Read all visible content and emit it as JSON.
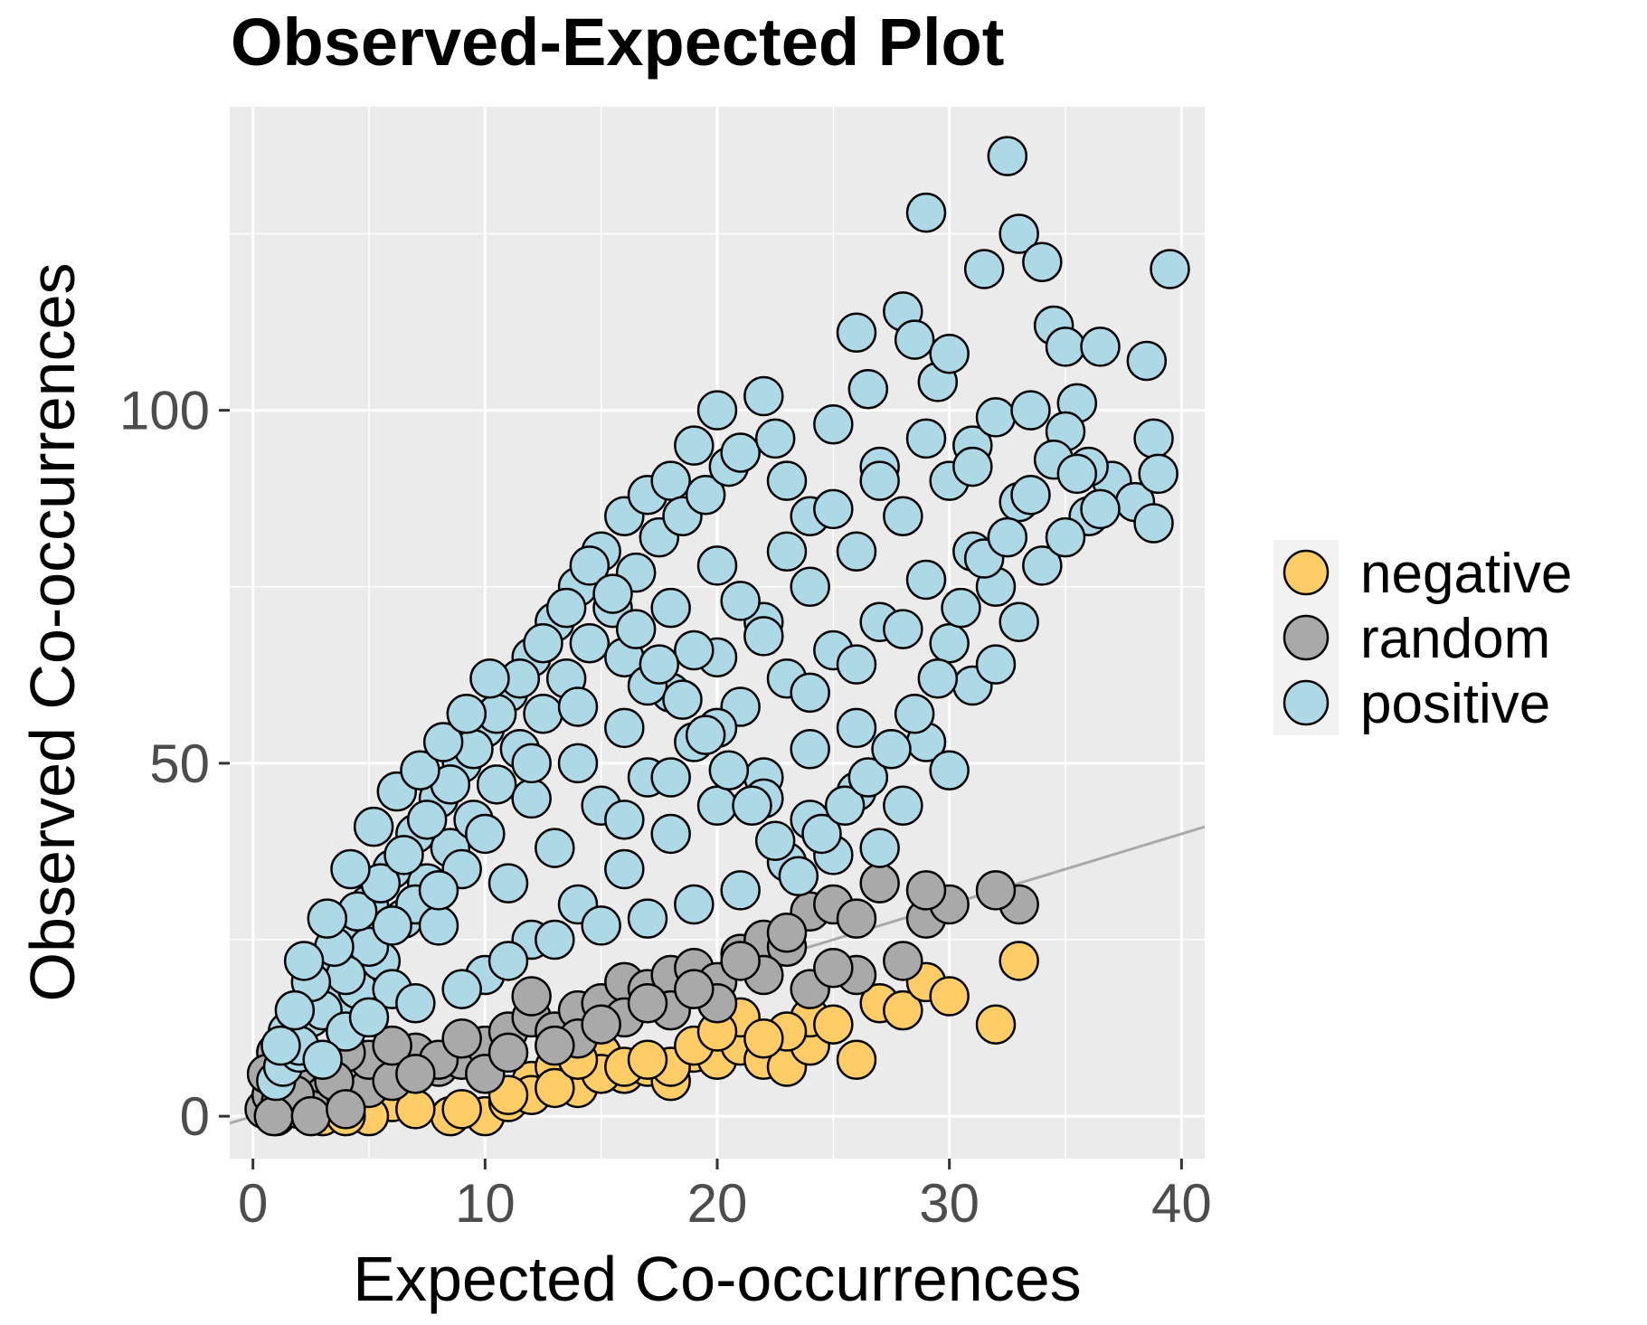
{
  "chart_data": {
    "type": "scatter",
    "title": "Observed-Expected Plot",
    "xlabel": "Expected Co-occurrences",
    "ylabel": "Observed Co-occurrences",
    "xlim": [
      -1,
      41
    ],
    "ylim": [
      -6,
      143
    ],
    "xticks": [
      0,
      10,
      20,
      30,
      40
    ],
    "xtick_labels": [
      "0",
      "10",
      "20",
      "30",
      "40"
    ],
    "yticks": [
      0,
      50,
      100
    ],
    "ytick_labels": [
      "0",
      "50",
      "100"
    ],
    "grid": true,
    "legend_position": "right",
    "reference_line": {
      "slope": 1,
      "intercept": 0,
      "color": "#aaaaaa"
    },
    "series": [
      {
        "name": "negative",
        "color": "#ffcc66",
        "points": [
          [
            6,
            2
          ],
          [
            8.5,
            0
          ],
          [
            10,
            0
          ],
          [
            11,
            2
          ],
          [
            12,
            5
          ],
          [
            13,
            7
          ],
          [
            14,
            4
          ],
          [
            15,
            9
          ],
          [
            16,
            6
          ],
          [
            17,
            7
          ],
          [
            18,
            5
          ],
          [
            19,
            9
          ],
          [
            20,
            8
          ],
          [
            21,
            10
          ],
          [
            22,
            8
          ],
          [
            23,
            7
          ],
          [
            24,
            10
          ],
          [
            24,
            14
          ],
          [
            25,
            13
          ],
          [
            26,
            8
          ],
          [
            27,
            16
          ],
          [
            28,
            15
          ],
          [
            29,
            19
          ],
          [
            30,
            17
          ],
          [
            32,
            13
          ],
          [
            33,
            22
          ],
          [
            5,
            0
          ],
          [
            7,
            1
          ],
          [
            9,
            1
          ],
          [
            12,
            3
          ],
          [
            15,
            6
          ],
          [
            18,
            7
          ],
          [
            19,
            10
          ],
          [
            21,
            14
          ],
          [
            23,
            12
          ],
          [
            3,
            0
          ],
          [
            4,
            0
          ],
          [
            13,
            4
          ],
          [
            16,
            7
          ],
          [
            20,
            12
          ],
          [
            22,
            11
          ],
          [
            17,
            8
          ],
          [
            14,
            8
          ],
          [
            11,
            3
          ]
        ]
      },
      {
        "name": "random",
        "color": "#a9a9a9",
        "points": [
          [
            0.5,
            1
          ],
          [
            0.8,
            3
          ],
          [
            1,
            0
          ],
          [
            1,
            5
          ],
          [
            1.2,
            2
          ],
          [
            1.5,
            8
          ],
          [
            2,
            1
          ],
          [
            2,
            4
          ],
          [
            3,
            2
          ],
          [
            3,
            6
          ],
          [
            4,
            3
          ],
          [
            5,
            4
          ],
          [
            5,
            8
          ],
          [
            6,
            5
          ],
          [
            7,
            9
          ],
          [
            8,
            7
          ],
          [
            9,
            8
          ],
          [
            10,
            10
          ],
          [
            11,
            12
          ],
          [
            12,
            14
          ],
          [
            13,
            12
          ],
          [
            14,
            15
          ],
          [
            15,
            16
          ],
          [
            16,
            19
          ],
          [
            17,
            18
          ],
          [
            18,
            20
          ],
          [
            19,
            21
          ],
          [
            20,
            19
          ],
          [
            21,
            23
          ],
          [
            22,
            25
          ],
          [
            23,
            24
          ],
          [
            24,
            29
          ],
          [
            25,
            30
          ],
          [
            26,
            20
          ],
          [
            27,
            33
          ],
          [
            28,
            22
          ],
          [
            29,
            28
          ],
          [
            30,
            30
          ],
          [
            33,
            30
          ],
          [
            1,
            9
          ],
          [
            2,
            7
          ],
          [
            4,
            9
          ],
          [
            6,
            10
          ],
          [
            8,
            8
          ],
          [
            10,
            6
          ],
          [
            12,
            17
          ],
          [
            14,
            11
          ],
          [
            16,
            14
          ],
          [
            18,
            15
          ],
          [
            20,
            16
          ],
          [
            22,
            20
          ],
          [
            24,
            18
          ],
          [
            25,
            21
          ],
          [
            0.6,
            6
          ],
          [
            1.8,
            3
          ],
          [
            3.5,
            5
          ],
          [
            7,
            6
          ],
          [
            9,
            11
          ],
          [
            11,
            9
          ],
          [
            13,
            10
          ],
          [
            15,
            13
          ],
          [
            17,
            16
          ],
          [
            19,
            18
          ],
          [
            21,
            22
          ],
          [
            23,
            26
          ],
          [
            32,
            32
          ],
          [
            29,
            32
          ],
          [
            26,
            28
          ],
          [
            0.9,
            0
          ],
          [
            2.5,
            0
          ],
          [
            4,
            1
          ]
        ]
      },
      {
        "name": "positive",
        "color": "#add8e6",
        "points": [
          [
            1,
            5
          ],
          [
            1.3,
            7
          ],
          [
            1.5,
            12
          ],
          [
            2,
            9
          ],
          [
            2.5,
            14
          ],
          [
            3,
            20
          ],
          [
            3.5,
            16
          ],
          [
            4,
            25
          ],
          [
            4.5,
            18
          ],
          [
            5,
            30
          ],
          [
            5.5,
            22
          ],
          [
            6,
            35
          ],
          [
            6.5,
            28
          ],
          [
            7,
            40
          ],
          [
            7.5,
            33
          ],
          [
            8,
            45
          ],
          [
            8.5,
            38
          ],
          [
            9,
            50
          ],
          [
            9.5,
            42
          ],
          [
            10,
            55
          ],
          [
            10.5,
            47
          ],
          [
            11,
            60
          ],
          [
            11.5,
            52
          ],
          [
            12,
            65
          ],
          [
            12.5,
            57
          ],
          [
            13,
            70
          ],
          [
            13.5,
            62
          ],
          [
            14,
            75
          ],
          [
            14.5,
            67
          ],
          [
            15,
            80
          ],
          [
            15.5,
            72
          ],
          [
            16,
            85
          ],
          [
            16.5,
            77
          ],
          [
            17,
            88
          ],
          [
            17.5,
            82
          ],
          [
            18,
            90
          ],
          [
            18.5,
            85
          ],
          [
            19,
            95
          ],
          [
            19.5,
            88
          ],
          [
            20,
            100
          ],
          [
            20.5,
            92
          ],
          [
            21,
            94
          ],
          [
            22,
            102
          ],
          [
            22.5,
            96
          ],
          [
            23,
            90
          ],
          [
            24,
            85
          ],
          [
            25,
            98
          ],
          [
            26,
            111
          ],
          [
            26.5,
            103
          ],
          [
            27,
            92
          ],
          [
            28,
            114
          ],
          [
            28.5,
            110
          ],
          [
            29,
            128
          ],
          [
            29.5,
            104
          ],
          [
            30,
            108
          ],
          [
            31,
            95
          ],
          [
            31.5,
            120
          ],
          [
            32,
            99
          ],
          [
            32.5,
            136
          ],
          [
            33,
            125
          ],
          [
            33.5,
            100
          ],
          [
            34,
            121
          ],
          [
            34.5,
            112
          ],
          [
            35,
            109
          ],
          [
            35.5,
            101
          ],
          [
            36,
            85
          ],
          [
            36.5,
            109
          ],
          [
            37,
            90
          ],
          [
            38,
            87
          ],
          [
            38.5,
            107
          ],
          [
            38.8,
            96
          ],
          [
            39,
            91
          ],
          [
            38.8,
            84
          ],
          [
            39.5,
            120
          ],
          [
            2,
            10
          ],
          [
            3,
            15
          ],
          [
            4,
            12
          ],
          [
            5,
            24
          ],
          [
            6,
            18
          ],
          [
            7,
            30
          ],
          [
            8,
            27
          ],
          [
            9,
            35
          ],
          [
            10,
            40
          ],
          [
            11,
            33
          ],
          [
            12,
            45
          ],
          [
            13,
            38
          ],
          [
            14,
            50
          ],
          [
            15,
            44
          ],
          [
            16,
            55
          ],
          [
            17,
            48
          ],
          [
            18,
            60
          ],
          [
            19,
            53
          ],
          [
            20,
            65
          ],
          [
            21,
            58
          ],
          [
            22,
            70
          ],
          [
            23,
            62
          ],
          [
            24,
            75
          ],
          [
            25,
            66
          ],
          [
            26,
            80
          ],
          [
            27,
            70
          ],
          [
            28,
            85
          ],
          [
            29,
            76
          ],
          [
            30,
            90
          ],
          [
            31,
            80
          ],
          [
            32,
            75
          ],
          [
            33,
            70
          ],
          [
            34,
            78
          ],
          [
            35,
            82
          ],
          [
            10,
            20
          ],
          [
            12,
            25
          ],
          [
            14,
            30
          ],
          [
            16,
            35
          ],
          [
            18,
            40
          ],
          [
            20,
            44
          ],
          [
            22,
            48
          ],
          [
            24,
            52
          ],
          [
            26,
            55
          ],
          [
            27,
            38
          ],
          [
            28,
            44
          ],
          [
            29,
            53
          ],
          [
            30,
            49
          ],
          [
            31,
            61
          ],
          [
            32,
            64
          ],
          [
            21,
            32
          ],
          [
            23,
            36
          ],
          [
            25,
            37
          ],
          [
            19,
            30
          ],
          [
            17,
            28
          ],
          [
            15,
            27
          ],
          [
            13,
            25
          ],
          [
            11,
            22
          ],
          [
            9,
            18
          ],
          [
            7,
            16
          ],
          [
            5,
            14
          ],
          [
            3,
            8
          ],
          [
            4,
            20
          ],
          [
            6,
            27
          ],
          [
            8,
            32
          ],
          [
            12,
            50
          ],
          [
            14,
            58
          ],
          [
            16,
            65
          ],
          [
            18,
            72
          ],
          [
            20,
            78
          ],
          [
            22,
            68
          ],
          [
            24,
            60
          ],
          [
            26,
            64
          ],
          [
            28,
            69
          ],
          [
            30,
            67
          ],
          [
            16,
            42
          ],
          [
            18,
            48
          ],
          [
            20,
            55
          ],
          [
            22,
            45
          ],
          [
            24,
            42
          ],
          [
            26,
            46
          ],
          [
            17,
            61
          ],
          [
            19,
            66
          ],
          [
            21,
            73
          ],
          [
            23,
            80
          ],
          [
            25,
            86
          ],
          [
            27,
            90
          ],
          [
            29,
            96
          ],
          [
            31,
            92
          ],
          [
            33,
            87
          ],
          [
            35,
            97
          ],
          [
            36,
            92
          ],
          [
            2.5,
            19
          ],
          [
            3.5,
            24
          ],
          [
            4.5,
            29
          ],
          [
            5.5,
            33
          ],
          [
            6.5,
            37
          ],
          [
            7.5,
            42
          ],
          [
            8.5,
            47
          ],
          [
            9.5,
            52
          ],
          [
            10.5,
            57
          ],
          [
            11.5,
            62
          ],
          [
            12.5,
            67
          ],
          [
            13.5,
            72
          ],
          [
            14.5,
            78
          ],
          [
            15.5,
            74
          ],
          [
            16.5,
            69
          ],
          [
            17.5,
            64
          ],
          [
            18.5,
            59
          ],
          [
            19.5,
            54
          ],
          [
            20.5,
            49
          ],
          [
            21.5,
            44
          ],
          [
            22.5,
            39
          ],
          [
            23.5,
            34
          ],
          [
            24.5,
            40
          ],
          [
            25.5,
            44
          ],
          [
            26.5,
            48
          ],
          [
            27.5,
            52
          ],
          [
            28.5,
            57
          ],
          [
            29.5,
            62
          ],
          [
            30.5,
            72
          ],
          [
            31.5,
            79
          ],
          [
            32.5,
            82
          ],
          [
            33.5,
            88
          ],
          [
            34.5,
            93
          ],
          [
            35.5,
            91
          ],
          [
            36.5,
            86
          ],
          [
            1.2,
            10
          ],
          [
            1.8,
            15
          ],
          [
            2.2,
            22
          ],
          [
            3.2,
            28
          ],
          [
            4.2,
            35
          ],
          [
            5.2,
            41
          ],
          [
            6.2,
            46
          ],
          [
            7.2,
            49
          ],
          [
            8.2,
            53
          ],
          [
            9.2,
            57
          ],
          [
            10.2,
            62
          ]
        ]
      }
    ]
  }
}
